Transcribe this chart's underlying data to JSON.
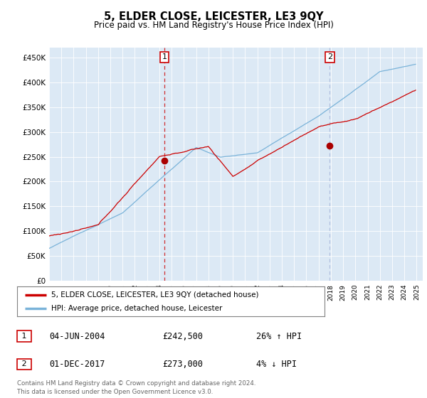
{
  "title": "5, ELDER CLOSE, LEICESTER, LE3 9QY",
  "subtitle": "Price paid vs. HM Land Registry's House Price Index (HPI)",
  "ylim": [
    0,
    470000
  ],
  "yticks": [
    0,
    50000,
    100000,
    150000,
    200000,
    250000,
    300000,
    350000,
    400000,
    450000
  ],
  "bg_color": "#dce9f5",
  "line_color_hpi": "#7ab3d9",
  "line_color_price": "#cc0000",
  "legend_price": "5, ELDER CLOSE, LEICESTER, LE3 9QY (detached house)",
  "legend_hpi": "HPI: Average price, detached house, Leicester",
  "sale1_date": "04-JUN-2004",
  "sale1_price": "£242,500",
  "sale1_hpi": "26% ↑ HPI",
  "sale2_date": "01-DEC-2017",
  "sale2_price": "£273,000",
  "sale2_hpi": "4% ↓ HPI",
  "footer": "Contains HM Land Registry data © Crown copyright and database right 2024.\nThis data is licensed under the Open Government Licence v3.0."
}
